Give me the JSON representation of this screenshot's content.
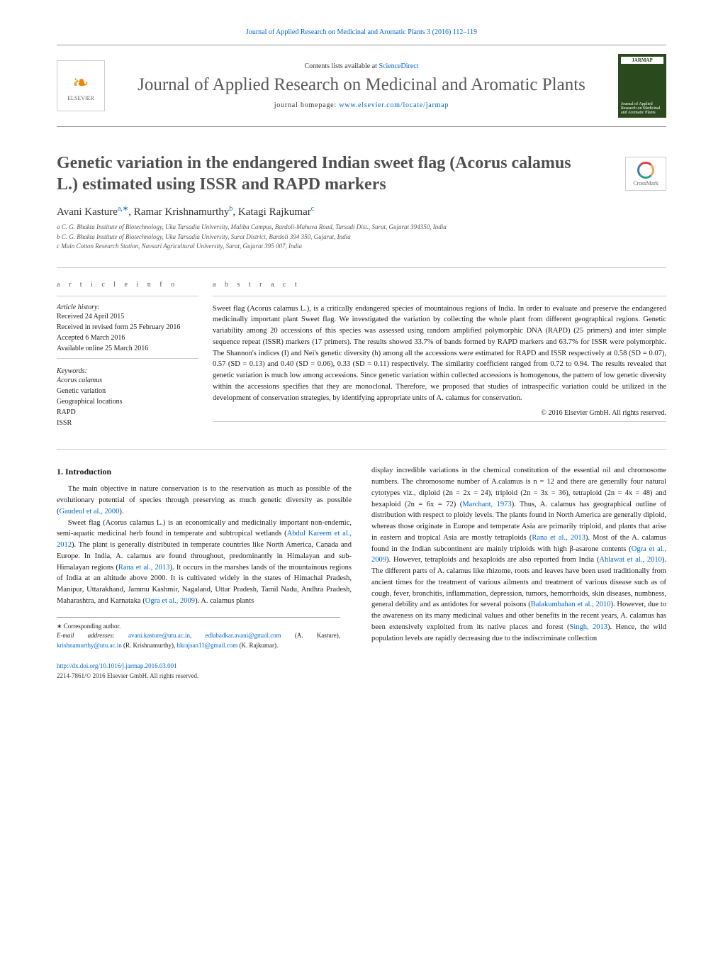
{
  "header": {
    "journal_ref": "Journal of Applied Research on Medicinal and Aromatic Plants 3 (2016) 112–119",
    "contents_line_prefix": "Contents lists available at ",
    "contents_link": "ScienceDirect",
    "journal_title": "Journal of Applied Research on Medicinal and Aromatic Plants",
    "homepage_prefix": "journal homepage: ",
    "homepage_url": "www.elsevier.com/locate/jarmap",
    "elsevier_label": "ELSEVIER",
    "cover_jarmap": "JARMAP",
    "cover_text": "Journal of Applied Research on Medicinal and Aromatic Plants",
    "crossmark": "CrossMark"
  },
  "article": {
    "title": "Genetic variation in the endangered Indian sweet flag (Acorus calamus L.) estimated using ISSR and RAPD markers",
    "authors_html": "Avani Kasture",
    "author1": "Avani Kasture",
    "sup1": "a,∗",
    "author2": "Ramar Krishnamurthy",
    "sup2": "b",
    "author3": "Katagi Rajkumar",
    "sup3": "c",
    "affil_a": "a C. G. Bhakta Institute of Biotechnology, Uka Tarsadia University, Maliba Campus, Bardoli-Mahuva Road, Tarsadi Dist., Surat, Gujarat 394350, India",
    "affil_b": "b C. G. Bhakta Institute of Biotechnology, Uka Tarsadia University, Surat District, Bardoli 394 350, Gujarat, India",
    "affil_c": "c Main Cotton Research Station, Navsari Agricultural University, Surat, Gujarat 395 007, India"
  },
  "info": {
    "heading": "a r t i c l e   i n f o",
    "history_label": "Article history:",
    "received": "Received 24 April 2015",
    "revised": "Received in revised form 25 February 2016",
    "accepted": "Accepted 6 March 2016",
    "online": "Available online 25 March 2016",
    "kw_label": "Keywords:",
    "kw1": "Acorus calamus",
    "kw2": "Genetic variation",
    "kw3": "Geographical locations",
    "kw4": "RAPD",
    "kw5": "ISSR"
  },
  "abstract": {
    "heading": "a b s t r a c t",
    "text": "Sweet flag (Acorus calamus L.), is a critically endangered species of mountainous regions of India. In order to evaluate and preserve the endangered medicinally important plant Sweet flag. We investigated the variation by collecting the whole plant from different geographical regions. Genetic variability among 20 accessions of this species was assessed using random amplified polymorphic DNA (RAPD) (25 primers) and inter simple sequence repeat (ISSR) markers (17 primers). The results showed 33.7% of bands formed by RAPD markers and 63.7% for ISSR were polymorphic. The Shannon's indices (I) and Nei's genetic diversity (h) among all the accessions were estimated for RAPD and ISSR respectively at 0.58 (SD = 0.07), 0.57 (SD = 0.13) and 0.40 (SD = 0.06), 0.33 (SD = 0.11) respectively. The similarity coefficient ranged from 0.72 to 0.94. The results revealed that genetic variation is much low among accessions. Since genetic variation within collected accessions is homogenous, the pattern of low genetic diversity within the accessions specifies that they are monoclonal. Therefore, we proposed that studies of intraspecific variation could be utilized in the development of conservation strategies, by identifying appropriate units of A. calamus for conservation.",
    "copyright": "© 2016 Elsevier GmbH. All rights reserved."
  },
  "body": {
    "intro_heading": "1. Introduction",
    "p1a": "The main objective in nature conservation is to the reservation as much as possible of the evolutionary potential of species through preserving as much genetic diversity as possible (",
    "p1_ref": "Gaudeul et al., 2000",
    "p1b": ").",
    "p2a": "Sweet flag (Acorus calamus L.) is an economically and medicinally important non-endemic, semi-aquatic medicinal herb found in temperate and subtropical wetlands (",
    "p2_ref1": "Abdul Kareem et al., 2012",
    "p2b": "). The plant is generally distributed in temperate countries like North America, Canada and Europe. In India, A. calamus are found throughout, predominantly in Himalayan and sub-Himalayan regions (",
    "p2_ref2": "Rana et al., 2013",
    "p2c": "). It occurs in the marshes lands of the mountainous regions of India at an altitude above 2000. It is cultivated widely in the states of Himachal Pradesh, Manipur, Uttarakhand, Jammu Kashmir, Nagaland, Uttar Pradesh, Tamil Nadu, Andhra Pradesh, Maharashtra, and Karnataka (",
    "p2_ref3": "Ogra et al., 2009",
    "p2d": "). A. calamus plants",
    "p3a": "display incredible variations in the chemical constitution of the essential oil and chromosome numbers. The chromosome number of A.calamus is n = 12 and there are generally four natural cytotypes viz., diploid (2n = 2x = 24), triploid (2n = 3x = 36), tetraploid (2n = 4x = 48) and hexaploid (2n = 6x = 72) (",
    "p3_ref1": "Marchant, 1973",
    "p3b": "). Thus, A. calamus has geographical outline of distribution with respect to ploidy levels. The plants found in North America are generally diploid, whereas those originate in Europe and temperate Asia are primarily triploid, and plants that arise in eastern and tropical Asia are mostly tetraploids (",
    "p3_ref2": "Rana et al., 2013",
    "p3c": "). Most of the A. calamus found in the Indian subcontinent are mainly triploids with high β-asarone contents (",
    "p3_ref3": "Ogra et al., 2009",
    "p3d": "). However, tetraploids and hexaploids are also reported from India (",
    "p3_ref4": "Ahlawat et al., 2010",
    "p3e": "). The different parts of A. calamus like rhizome, roots and leaves have been used traditionally from ancient times for the treatment of various ailments and treatment of various disease such as of cough, fever, bronchitis, inflammation, depression, tumors, hemorrhoids, skin diseases, numbness, general debility and as antidotes for several poisons (",
    "p3_ref5": "Balakumbahan et al., 2010",
    "p3f": "). However, due to the awareness on its many medicinal values and other benefits in the recent years, A. calamus has been extensively exploited from its native places and forest (",
    "p3_ref6": "Singh, 2013",
    "p3g": "). Hence, the wild population levels are rapidly decreasing due to the indiscriminate collection"
  },
  "footnotes": {
    "corr": "∗ Corresponding author.",
    "email_label": "E-mail addresses: ",
    "email1": "avani.kasture@utu.ac.in",
    "email2": "edlabadkar.avani@gmail.com",
    "name1": " (A. Kasture), ",
    "email3": "krishnamurthy@utu.ac.in",
    "name2": " (R. Krishnamurthy), ",
    "email4": "hkrajsan11@gmail.com",
    "name3": " (K. Rajkumar).",
    "doi": "http://dx.doi.org/10.1016/j.jarmap.2016.03.001",
    "issn": "2214-7861/© 2016 Elsevier GmbH. All rights reserved."
  },
  "style": {
    "link_color": "#0066cc",
    "text_color": "#1a1a1a",
    "muted_color": "#555555",
    "rule_color": "#999999",
    "elsevier_orange": "#e8890c",
    "cover_green": "#2a4a1e",
    "body_fontsize": 10.5,
    "title_fontsize": 24,
    "journal_title_fontsize": 25
  }
}
